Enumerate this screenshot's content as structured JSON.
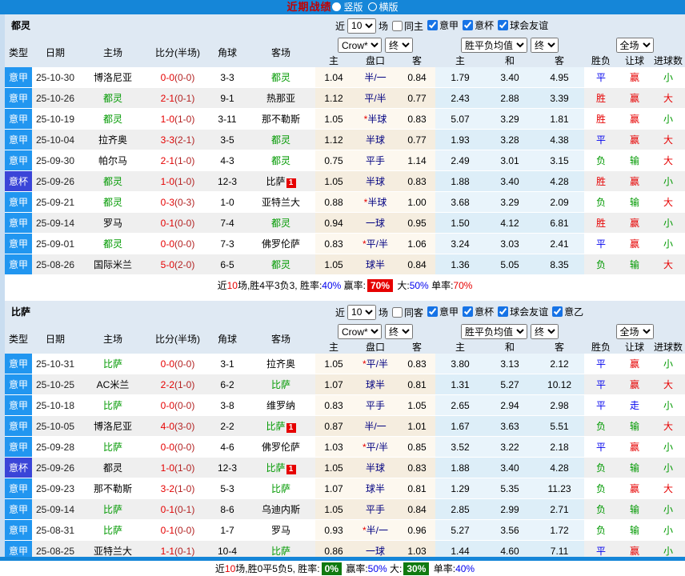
{
  "topbar": {
    "title": "近期战绩",
    "vertical_label": "竖版",
    "horizontal_label": "横版"
  },
  "controls": {
    "near_label": "近",
    "games_label": "场",
    "bookmaker": "Crow*",
    "final": "终",
    "odds_avg": "胜平负均值",
    "scope": "全场"
  },
  "columns": {
    "type": "类型",
    "date": "日期",
    "home": "主场",
    "score": "比分(半场)",
    "corner": "角球",
    "away": "客场",
    "home_odds": "主",
    "handicap": "盘口",
    "away_odds": "客",
    "draw": "和",
    "result": "胜负",
    "handicap_result": "让球",
    "goals": "进球数"
  },
  "colors": {
    "accent_blue": "#1586d8",
    "league_cell_blue": "#2196f0",
    "cup_cell_blue": "#3a45d8",
    "win_red": "#e60000",
    "draw_blue": "#0000ee",
    "lose_green": "#009900"
  },
  "tables": [
    {
      "team": "都灵",
      "filter": {
        "count": "10",
        "same_label": "同主",
        "same_checked": false,
        "leagues": [
          {
            "label": "意甲",
            "checked": true
          },
          {
            "label": "意杯",
            "checked": true
          },
          {
            "label": "球会友谊",
            "checked": true
          }
        ]
      },
      "rows": [
        {
          "lg": "意甲",
          "cup": false,
          "d": "25-10-30",
          "h": "博洛尼亚",
          "hg": false,
          "s": "0-0",
          "sh": "(0-0)",
          "c": "3-3",
          "a": "都灵",
          "ag": true,
          "ab": "",
          "o1": "1.04",
          "line": "半/一",
          "o2": "0.84",
          "e1": "1.79",
          "e2": "3.40",
          "e3": "4.95",
          "r": "平",
          "rc": "b",
          "w": "赢",
          "wc": "r",
          "g": "小",
          "gc": "g"
        },
        {
          "lg": "意甲",
          "cup": false,
          "d": "25-10-26",
          "h": "都灵",
          "hg": true,
          "s": "2-1",
          "sh": "(0-1)",
          "c": "9-1",
          "a": "热那亚",
          "ag": false,
          "ab": "",
          "o1": "1.12",
          "line": "平/半",
          "o2": "0.77",
          "e1": "2.43",
          "e2": "2.88",
          "e3": "3.39",
          "r": "胜",
          "rc": "r",
          "w": "赢",
          "wc": "r",
          "g": "大",
          "gc": "r"
        },
        {
          "lg": "意甲",
          "cup": false,
          "d": "25-10-19",
          "h": "都灵",
          "hg": true,
          "s": "1-0",
          "sh": "(1-0)",
          "c": "3-11",
          "a": "那不勒斯",
          "ag": false,
          "ab": "",
          "o1": "1.05",
          "line": "*半球",
          "o2": "0.83",
          "e1": "5.07",
          "e2": "3.29",
          "e3": "1.81",
          "r": "胜",
          "rc": "r",
          "w": "赢",
          "wc": "r",
          "g": "小",
          "gc": "g"
        },
        {
          "lg": "意甲",
          "cup": false,
          "d": "25-10-04",
          "h": "拉齐奥",
          "hg": false,
          "s": "3-3",
          "sh": "(2-1)",
          "c": "3-5",
          "a": "都灵",
          "ag": true,
          "ab": "",
          "o1": "1.12",
          "line": "半球",
          "o2": "0.77",
          "e1": "1.93",
          "e2": "3.28",
          "e3": "4.38",
          "r": "平",
          "rc": "b",
          "w": "赢",
          "wc": "r",
          "g": "大",
          "gc": "r"
        },
        {
          "lg": "意甲",
          "cup": false,
          "d": "25-09-30",
          "h": "帕尔马",
          "hg": false,
          "s": "2-1",
          "sh": "(1-0)",
          "c": "4-3",
          "a": "都灵",
          "ag": true,
          "ab": "",
          "o1": "0.75",
          "line": "平手",
          "o2": "1.14",
          "e1": "2.49",
          "e2": "3.01",
          "e3": "3.15",
          "r": "负",
          "rc": "g",
          "w": "输",
          "wc": "g",
          "g": "大",
          "gc": "r"
        },
        {
          "lg": "意杯",
          "cup": true,
          "d": "25-09-26",
          "h": "都灵",
          "hg": true,
          "s": "1-0",
          "sh": "(1-0)",
          "c": "12-3",
          "a": "比萨",
          "ag": false,
          "ab": "1",
          "o1": "1.05",
          "line": "半球",
          "o2": "0.83",
          "e1": "1.88",
          "e2": "3.40",
          "e3": "4.28",
          "r": "胜",
          "rc": "r",
          "w": "赢",
          "wc": "r",
          "g": "小",
          "gc": "g"
        },
        {
          "lg": "意甲",
          "cup": false,
          "d": "25-09-21",
          "h": "都灵",
          "hg": true,
          "s": "0-3",
          "sh": "(0-3)",
          "c": "1-0",
          "a": "亚特兰大",
          "ag": false,
          "ab": "",
          "o1": "0.88",
          "line": "*半球",
          "o2": "1.00",
          "e1": "3.68",
          "e2": "3.29",
          "e3": "2.09",
          "r": "负",
          "rc": "g",
          "w": "输",
          "wc": "g",
          "g": "大",
          "gc": "r"
        },
        {
          "lg": "意甲",
          "cup": false,
          "d": "25-09-14",
          "h": "罗马",
          "hg": false,
          "s": "0-1",
          "sh": "(0-0)",
          "c": "7-4",
          "a": "都灵",
          "ag": true,
          "ab": "",
          "o1": "0.94",
          "line": "一球",
          "o2": "0.95",
          "e1": "1.50",
          "e2": "4.12",
          "e3": "6.81",
          "r": "胜",
          "rc": "r",
          "w": "赢",
          "wc": "r",
          "g": "小",
          "gc": "g"
        },
        {
          "lg": "意甲",
          "cup": false,
          "d": "25-09-01",
          "h": "都灵",
          "hg": true,
          "s": "0-0",
          "sh": "(0-0)",
          "c": "7-3",
          "a": "佛罗伦萨",
          "ag": false,
          "ab": "",
          "o1": "0.83",
          "line": "*平/半",
          "o2": "1.06",
          "e1": "3.24",
          "e2": "3.03",
          "e3": "2.41",
          "r": "平",
          "rc": "b",
          "w": "赢",
          "wc": "r",
          "g": "小",
          "gc": "g"
        },
        {
          "lg": "意甲",
          "cup": false,
          "d": "25-08-26",
          "h": "国际米兰",
          "hg": false,
          "s": "5-0",
          "sh": "(2-0)",
          "c": "6-5",
          "a": "都灵",
          "ag": true,
          "ab": "",
          "o1": "1.05",
          "line": "球半",
          "o2": "0.84",
          "e1": "1.36",
          "e2": "5.05",
          "e3": "8.35",
          "r": "负",
          "rc": "g",
          "w": "输",
          "wc": "g",
          "g": "大",
          "gc": "r"
        }
      ],
      "summary": [
        {
          "t": "近"
        },
        {
          "t": "10",
          "c": "red"
        },
        {
          "t": "场,胜4平3负3, 胜率:"
        },
        {
          "t": "40%",
          "c": "blue"
        },
        {
          "t": " 赢率:"
        },
        {
          "t": "70%",
          "c": "badge-red"
        },
        {
          "t": " 大:"
        },
        {
          "t": "50%",
          "c": "blue"
        },
        {
          "t": " 单率:"
        },
        {
          "t": "70%",
          "c": "red"
        }
      ]
    },
    {
      "team": "比萨",
      "filter": {
        "count": "10",
        "same_label": "同客",
        "same_checked": false,
        "leagues": [
          {
            "label": "意甲",
            "checked": true
          },
          {
            "label": "意杯",
            "checked": true
          },
          {
            "label": "球会友谊",
            "checked": true
          },
          {
            "label": "意乙",
            "checked": true
          }
        ]
      },
      "rows": [
        {
          "lg": "意甲",
          "cup": false,
          "d": "25-10-31",
          "h": "比萨",
          "hg": true,
          "s": "0-0",
          "sh": "(0-0)",
          "c": "3-1",
          "a": "拉齐奥",
          "ag": false,
          "ab": "",
          "o1": "1.05",
          "line": "*平/半",
          "o2": "0.83",
          "e1": "3.80",
          "e2": "3.13",
          "e3": "2.12",
          "r": "平",
          "rc": "b",
          "w": "赢",
          "wc": "r",
          "g": "小",
          "gc": "g"
        },
        {
          "lg": "意甲",
          "cup": false,
          "d": "25-10-25",
          "h": "AC米兰",
          "hg": false,
          "s": "2-2",
          "sh": "(1-0)",
          "c": "6-2",
          "a": "比萨",
          "ag": true,
          "ab": "",
          "o1": "1.07",
          "line": "球半",
          "o2": "0.81",
          "e1": "1.31",
          "e2": "5.27",
          "e3": "10.12",
          "r": "平",
          "rc": "b",
          "w": "赢",
          "wc": "r",
          "g": "大",
          "gc": "r"
        },
        {
          "lg": "意甲",
          "cup": false,
          "d": "25-10-18",
          "h": "比萨",
          "hg": true,
          "s": "0-0",
          "sh": "(0-0)",
          "c": "3-8",
          "a": "维罗纳",
          "ag": false,
          "ab": "",
          "o1": "0.83",
          "line": "平手",
          "o2": "1.05",
          "e1": "2.65",
          "e2": "2.94",
          "e3": "2.98",
          "r": "平",
          "rc": "b",
          "w": "走",
          "wc": "b",
          "g": "小",
          "gc": "g"
        },
        {
          "lg": "意甲",
          "cup": false,
          "d": "25-10-05",
          "h": "博洛尼亚",
          "hg": false,
          "s": "4-0",
          "sh": "(3-0)",
          "c": "2-2",
          "a": "比萨",
          "ag": true,
          "ab": "1",
          "o1": "0.87",
          "line": "半/一",
          "o2": "1.01",
          "e1": "1.67",
          "e2": "3.63",
          "e3": "5.51",
          "r": "负",
          "rc": "g",
          "w": "输",
          "wc": "g",
          "g": "大",
          "gc": "r"
        },
        {
          "lg": "意甲",
          "cup": false,
          "d": "25-09-28",
          "h": "比萨",
          "hg": true,
          "s": "0-0",
          "sh": "(0-0)",
          "c": "4-6",
          "a": "佛罗伦萨",
          "ag": false,
          "ab": "",
          "o1": "1.03",
          "line": "*平/半",
          "o2": "0.85",
          "e1": "3.52",
          "e2": "3.22",
          "e3": "2.18",
          "r": "平",
          "rc": "b",
          "w": "赢",
          "wc": "r",
          "g": "小",
          "gc": "g"
        },
        {
          "lg": "意杯",
          "cup": true,
          "d": "25-09-26",
          "h": "都灵",
          "hg": false,
          "s": "1-0",
          "sh": "(1-0)",
          "c": "12-3",
          "a": "比萨",
          "ag": true,
          "ab": "1",
          "o1": "1.05",
          "line": "半球",
          "o2": "0.83",
          "e1": "1.88",
          "e2": "3.40",
          "e3": "4.28",
          "r": "负",
          "rc": "g",
          "w": "输",
          "wc": "g",
          "g": "小",
          "gc": "g"
        },
        {
          "lg": "意甲",
          "cup": false,
          "d": "25-09-23",
          "h": "那不勒斯",
          "hg": false,
          "s": "3-2",
          "sh": "(1-0)",
          "c": "5-3",
          "a": "比萨",
          "ag": true,
          "ab": "",
          "o1": "1.07",
          "line": "球半",
          "o2": "0.81",
          "e1": "1.29",
          "e2": "5.35",
          "e3": "11.23",
          "r": "负",
          "rc": "g",
          "w": "赢",
          "wc": "r",
          "g": "大",
          "gc": "r"
        },
        {
          "lg": "意甲",
          "cup": false,
          "d": "25-09-14",
          "h": "比萨",
          "hg": true,
          "s": "0-1",
          "sh": "(0-1)",
          "c": "8-6",
          "a": "乌迪内斯",
          "ag": false,
          "ab": "",
          "o1": "1.05",
          "line": "平手",
          "o2": "0.84",
          "e1": "2.85",
          "e2": "2.99",
          "e3": "2.71",
          "r": "负",
          "rc": "g",
          "w": "输",
          "wc": "g",
          "g": "小",
          "gc": "g"
        },
        {
          "lg": "意甲",
          "cup": false,
          "d": "25-08-31",
          "h": "比萨",
          "hg": true,
          "s": "0-1",
          "sh": "(0-0)",
          "c": "1-7",
          "a": "罗马",
          "ag": false,
          "ab": "",
          "o1": "0.93",
          "line": "*半/一",
          "o2": "0.96",
          "e1": "5.27",
          "e2": "3.56",
          "e3": "1.72",
          "r": "负",
          "rc": "g",
          "w": "输",
          "wc": "g",
          "g": "小",
          "gc": "g"
        },
        {
          "lg": "意甲",
          "cup": false,
          "d": "25-08-25",
          "h": "亚特兰大",
          "hg": false,
          "s": "1-1",
          "sh": "(0-1)",
          "c": "10-4",
          "a": "比萨",
          "ag": true,
          "ab": "",
          "o1": "0.86",
          "line": "一球",
          "o2": "1.03",
          "e1": "1.44",
          "e2": "4.60",
          "e3": "7.11",
          "r": "平",
          "rc": "b",
          "w": "赢",
          "wc": "r",
          "g": "小",
          "gc": "g"
        }
      ],
      "summary": [
        {
          "t": "近"
        },
        {
          "t": "10",
          "c": "red"
        },
        {
          "t": "场,胜0平5负5, 胜率:"
        },
        {
          "t": "0%",
          "c": "badge-green"
        },
        {
          "t": " 赢率:"
        },
        {
          "t": "50%",
          "c": "blue"
        },
        {
          "t": " 大:"
        },
        {
          "t": "30%",
          "c": "badge-green"
        },
        {
          "t": " 单率:"
        },
        {
          "t": "40%",
          "c": "blue"
        }
      ]
    }
  ]
}
